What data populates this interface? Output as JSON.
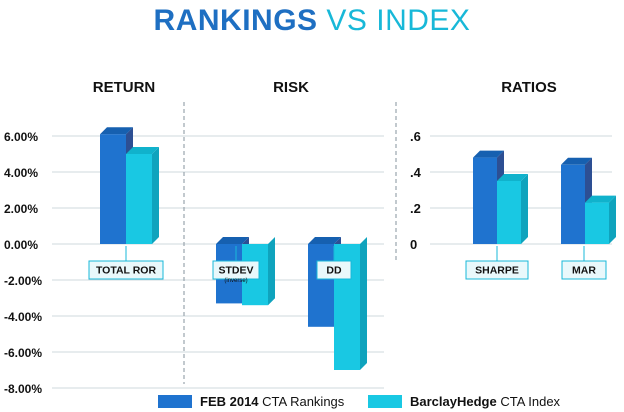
{
  "title": {
    "strong": "RANKINGS",
    "light": "VS INDEX"
  },
  "colors": {
    "ranking_front": "#1f73cf",
    "ranking_side": "#2d4f93",
    "ranking_top": "#1660b0",
    "index_front": "#19c8e3",
    "index_side": "#0fa3bd",
    "index_top": "#10b2cc",
    "grid": "#cfd8de",
    "separator": "#9aa5ad",
    "label_border": "#18b8d8",
    "label_fill": "#e9f8fb",
    "text": "#111111"
  },
  "chart_data": [
    {
      "type": "bar",
      "title": "RETURN",
      "ylim": [
        -8,
        6
      ],
      "yticks": [
        6,
        4,
        2,
        0,
        -2,
        -4,
        -6,
        -8
      ],
      "ytick_labels": [
        "6.00%",
        "4.00%",
        "2.00%",
        "0.00%",
        "-2.00%",
        "-4.00%",
        "-6.00%",
        "-8.00%"
      ],
      "categories": [
        {
          "label": "TOTAL ROR",
          "sub": ""
        }
      ],
      "series": [
        {
          "name": "FEB 2014 CTA Rankings",
          "values": [
            6.1
          ]
        },
        {
          "name": "BarclayHedge CTA Index",
          "values": [
            5.0
          ]
        }
      ]
    },
    {
      "type": "bar",
      "title": "RISK",
      "ylim": [
        -8,
        6
      ],
      "categories": [
        {
          "label": "STDEV",
          "sub": "(inverse)"
        },
        {
          "label": "DD",
          "sub": ""
        }
      ],
      "series": [
        {
          "name": "FEB 2014 CTA Rankings",
          "values": [
            -3.3,
            -4.6
          ]
        },
        {
          "name": "BarclayHedge CTA Index",
          "values": [
            -3.4,
            -7.0
          ]
        }
      ]
    },
    {
      "type": "bar",
      "title": "RATIOS",
      "ylim": [
        0,
        0.6
      ],
      "yticks": [
        0.6,
        0.4,
        0.2,
        0
      ],
      "ytick_labels": [
        ".6",
        ".4",
        ".2",
        "0"
      ],
      "categories": [
        {
          "label": "SHARPE",
          "sub": ""
        },
        {
          "label": "MAR",
          "sub": ""
        }
      ],
      "series": [
        {
          "name": "FEB 2014 CTA Rankings",
          "values": [
            0.48,
            0.44
          ]
        },
        {
          "name": "BarclayHedge CTA Index",
          "values": [
            0.35,
            0.23
          ]
        }
      ]
    }
  ],
  "legend": [
    {
      "strong": "FEB 2014",
      "light": "CTA Rankings"
    },
    {
      "strong": "BarclayHedge",
      "light": "CTA Index"
    }
  ]
}
